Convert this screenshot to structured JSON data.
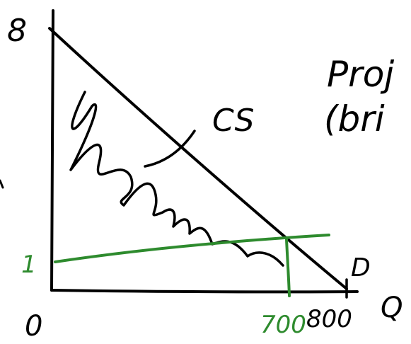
{
  "labels": {
    "y_top": "8",
    "y_green": "1",
    "origin": "0",
    "cs": "CS",
    "demand": "D",
    "x_axis": "Q",
    "x_tick_green": "700",
    "x_tick_black": "800",
    "heading_line1": "Proj",
    "heading_line2": "(bri"
  },
  "colors": {
    "ink": "#000000",
    "green": "#2e8b2e",
    "background": "#ffffff"
  }
}
